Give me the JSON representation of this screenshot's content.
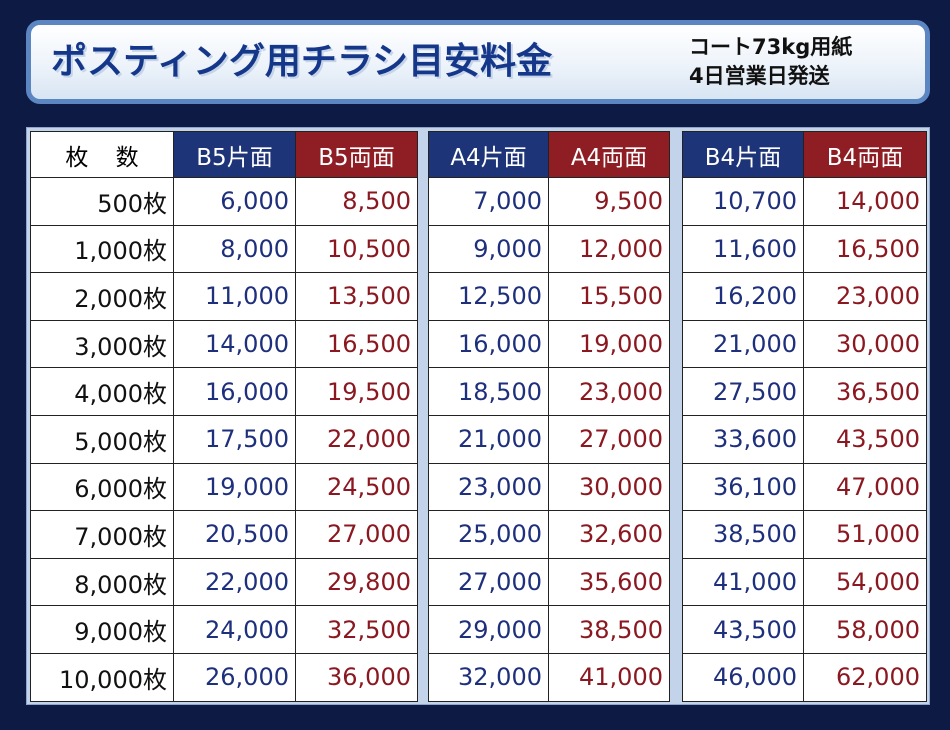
{
  "header": {
    "title": "ポスティング用チラシ目安料金",
    "note_line1": "コート73kg用紙",
    "note_line2": "4日営業日発送"
  },
  "columns": {
    "count": "枚 数",
    "b5_single": "B5片面",
    "b5_double": "B5両面",
    "a4_single": "A4片面",
    "a4_double": "A4両面",
    "b4_single": "B4片面",
    "b4_double": "B4両面"
  },
  "rows": [
    {
      "qty": "500枚",
      "b5s": "6,000",
      "b5d": "8,500",
      "a4s": "7,000",
      "a4d": "9,500",
      "b4s": "10,700",
      "b4d": "14,000"
    },
    {
      "qty": "1,000枚",
      "b5s": "8,000",
      "b5d": "10,500",
      "a4s": "9,000",
      "a4d": "12,000",
      "b4s": "11,600",
      "b4d": "16,500"
    },
    {
      "qty": "2,000枚",
      "b5s": "11,000",
      "b5d": "13,500",
      "a4s": "12,500",
      "a4d": "15,500",
      "b4s": "16,200",
      "b4d": "23,000"
    },
    {
      "qty": "3,000枚",
      "b5s": "14,000",
      "b5d": "16,500",
      "a4s": "16,000",
      "a4d": "19,000",
      "b4s": "21,000",
      "b4d": "30,000"
    },
    {
      "qty": "4,000枚",
      "b5s": "16,000",
      "b5d": "19,500",
      "a4s": "18,500",
      "a4d": "23,000",
      "b4s": "27,500",
      "b4d": "36,500"
    },
    {
      "qty": "5,000枚",
      "b5s": "17,500",
      "b5d": "22,000",
      "a4s": "21,000",
      "a4d": "27,000",
      "b4s": "33,600",
      "b4d": "43,500"
    },
    {
      "qty": "6,000枚",
      "b5s": "19,000",
      "b5d": "24,500",
      "a4s": "23,000",
      "a4d": "30,000",
      "b4s": "36,100",
      "b4d": "47,000"
    },
    {
      "qty": "7,000枚",
      "b5s": "20,500",
      "b5d": "27,000",
      "a4s": "25,000",
      "a4d": "32,600",
      "b4s": "38,500",
      "b4d": "51,000"
    },
    {
      "qty": "8,000枚",
      "b5s": "22,000",
      "b5d": "29,800",
      "a4s": "27,000",
      "a4d": "35,600",
      "b4s": "41,000",
      "b4d": "54,000"
    },
    {
      "qty": "9,000枚",
      "b5s": "24,000",
      "b5d": "32,500",
      "a4s": "29,000",
      "a4d": "38,500",
      "b4s": "43,500",
      "b4d": "58,000"
    },
    {
      "qty": "10,000枚",
      "b5s": "26,000",
      "b5d": "36,000",
      "a4s": "32,000",
      "a4d": "41,000",
      "b4s": "46,000",
      "b4d": "62,000"
    }
  ],
  "colors": {
    "background": "#0c1a44",
    "header_blue": "#1d3578",
    "header_red": "#8f1e24",
    "value_blue": "#1e2f7c",
    "value_red": "#8b1820"
  }
}
